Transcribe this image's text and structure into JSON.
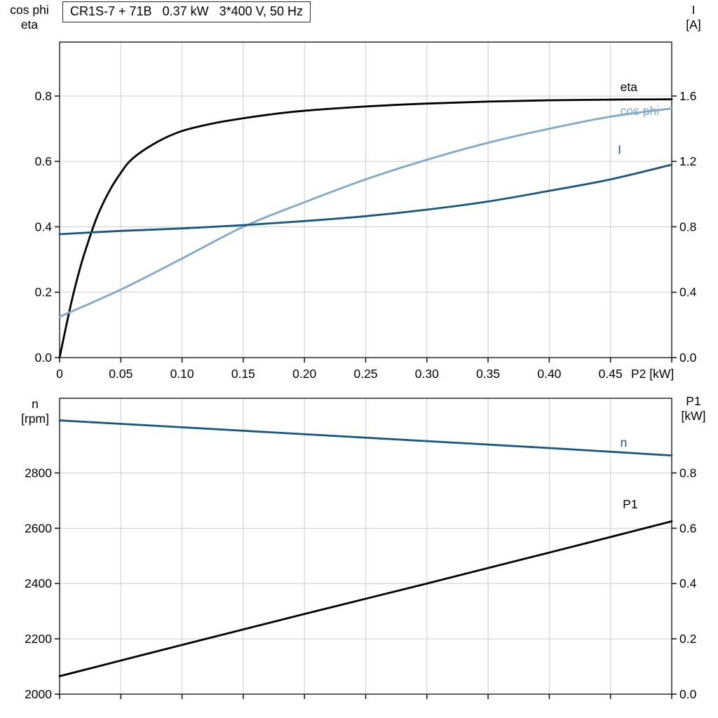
{
  "colors": {
    "black": "#000000",
    "dark_blue": "#17567e",
    "light_blue": "#7fa9c8",
    "grid": "#c9cdd2",
    "frame": "#1a1a1a"
  },
  "chart_data": [
    {
      "type": "line",
      "title": "CR1S-7 + 71B   0.37 kW   3*400 V, 50 Hz",
      "xlabel": "P2 [kW]",
      "xlim": [
        0,
        0.5
      ],
      "x_ticks": [
        0,
        0.05,
        0.1,
        0.15,
        0.2,
        0.25,
        0.3,
        0.35,
        0.4,
        0.45,
        0.5
      ],
      "x_tick_labels": [
        "0",
        "0.05",
        "0.10",
        "0.15",
        "0.20",
        "0.25",
        "0.30",
        "0.35",
        "0.40",
        "0.45",
        ""
      ],
      "grid": true,
      "legend_position": "inline-right",
      "left_axis": {
        "label_lines": [
          "cos phi",
          "eta"
        ],
        "lim": [
          0,
          0.965
        ],
        "ticks": [
          0,
          0.2,
          0.4,
          0.6,
          0.8
        ],
        "tick_labels": [
          "0.0",
          "0.2",
          "0.4",
          "0.6",
          "0.8"
        ]
      },
      "right_axis": {
        "label_lines": [
          "I",
          "[A]"
        ],
        "lim": [
          0,
          1.93
        ],
        "ticks": [
          0,
          0.4,
          0.8,
          1.2,
          1.6
        ],
        "tick_labels": [
          "0.0",
          "0.4",
          "0.8",
          "1.2",
          "1.6"
        ]
      },
      "series": [
        {
          "name": "eta",
          "label": "eta",
          "axis": "left",
          "color": "black",
          "label_at": {
            "x": 0.458,
            "y": 0.815
          },
          "x": [
            0,
            0.005,
            0.01,
            0.015,
            0.02,
            0.03,
            0.04,
            0.05,
            0.06,
            0.08,
            0.1,
            0.125,
            0.15,
            0.175,
            0.2,
            0.25,
            0.3,
            0.35,
            0.4,
            0.45,
            0.5
          ],
          "y": [
            0,
            0.09,
            0.175,
            0.25,
            0.315,
            0.425,
            0.505,
            0.565,
            0.61,
            0.66,
            0.693,
            0.716,
            0.732,
            0.745,
            0.755,
            0.768,
            0.777,
            0.783,
            0.787,
            0.789,
            0.79
          ]
        },
        {
          "name": "cos phi",
          "label": "cos phi",
          "axis": "left",
          "color": "light_blue",
          "label_at": {
            "x": 0.458,
            "y": 0.742
          },
          "x": [
            0,
            0.05,
            0.1,
            0.15,
            0.2,
            0.25,
            0.3,
            0.35,
            0.4,
            0.45,
            0.5
          ],
          "y": [
            0.125,
            0.208,
            0.303,
            0.4,
            0.475,
            0.545,
            0.605,
            0.657,
            0.7,
            0.737,
            0.762
          ]
        },
        {
          "name": "I",
          "label": "I",
          "axis": "right",
          "color": "dark_blue",
          "label_at": {
            "x": 0.456,
            "y": 1.245
          },
          "x": [
            0,
            0.05,
            0.1,
            0.15,
            0.2,
            0.25,
            0.3,
            0.35,
            0.4,
            0.45,
            0.5
          ],
          "y": [
            0.755,
            0.775,
            0.79,
            0.81,
            0.835,
            0.865,
            0.905,
            0.955,
            1.02,
            1.09,
            1.18
          ]
        }
      ]
    },
    {
      "type": "line",
      "title": "",
      "xlabel": "",
      "xlim": [
        0,
        0.5
      ],
      "x_ticks": [
        0,
        0.05,
        0.1,
        0.15,
        0.2,
        0.25,
        0.3,
        0.35,
        0.4,
        0.45,
        0.5
      ],
      "x_tick_labels": [],
      "grid": true,
      "legend_position": "inline-right",
      "left_axis": {
        "label_lines": [
          "n",
          "[rpm]"
        ],
        "lim": [
          2000,
          3070
        ],
        "ticks": [
          2000,
          2200,
          2400,
          2600,
          2800
        ],
        "tick_labels": [
          "2000",
          "2200",
          "2400",
          "2600",
          "2800"
        ]
      },
      "right_axis": {
        "label_lines": [
          "P1",
          "[kW]"
        ],
        "lim": [
          0,
          1.07
        ],
        "ticks": [
          0,
          0.2,
          0.4,
          0.6,
          0.8
        ],
        "tick_labels": [
          "0.0",
          "0.2",
          "0.4",
          "0.6",
          "0.8"
        ]
      },
      "series": [
        {
          "name": "n",
          "label": "n",
          "axis": "left",
          "color": "dark_blue",
          "label_at": {
            "x": 0.458,
            "y": 2895
          },
          "x": [
            0,
            0.1,
            0.2,
            0.3,
            0.4,
            0.5
          ],
          "y": [
            2990,
            2965,
            2940,
            2915,
            2890,
            2863
          ]
        },
        {
          "name": "P1",
          "label": "P1",
          "axis": "right",
          "color": "black",
          "label_at": {
            "x": 0.46,
            "y": 0.672
          },
          "x": [
            0,
            0.1,
            0.2,
            0.3,
            0.4,
            0.5
          ],
          "y": [
            0.065,
            0.178,
            0.29,
            0.4,
            0.512,
            0.625
          ]
        }
      ]
    }
  ]
}
